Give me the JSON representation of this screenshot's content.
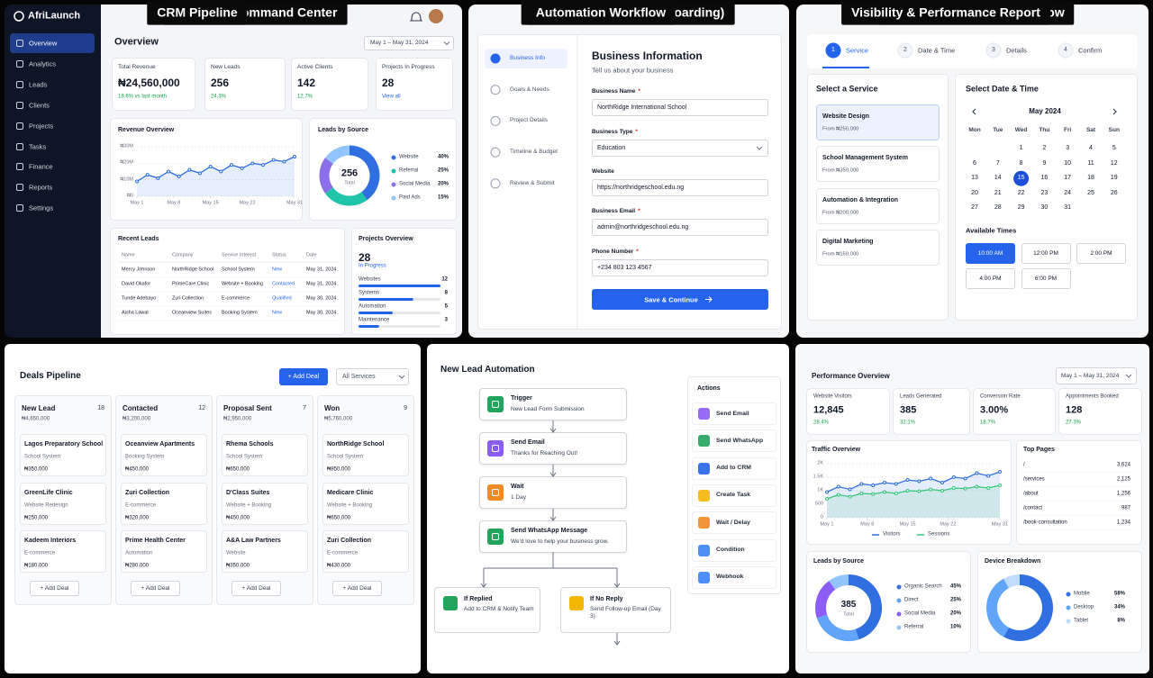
{
  "command_center": {
    "label": "Business Command Center",
    "brand": "AfriLaunch",
    "nav": [
      "Overview",
      "Analytics",
      "Leads",
      "Clients",
      "Projects",
      "Tasks",
      "Finance",
      "Reports",
      "Settings"
    ],
    "active_nav": 0,
    "title": "Overview",
    "date_range": "May 1 – May 31, 2024",
    "kpis": [
      {
        "label": "Total Revenue",
        "value": "₦24,560,000",
        "change": "18.6% vs last month"
      },
      {
        "label": "New Leads",
        "value": "256",
        "change": "24.3%"
      },
      {
        "label": "Active Clients",
        "value": "142",
        "change": "12.7%"
      },
      {
        "label": "Projects In Progress",
        "value": "28",
        "link": "View all"
      }
    ],
    "revenue": {
      "type": "line",
      "title": "Revenue Overview",
      "grid": true,
      "x": [
        1,
        3,
        5,
        7,
        9,
        11,
        13,
        15,
        17,
        19,
        21,
        23,
        25,
        27,
        29,
        31
      ],
      "xlim": [
        1,
        31
      ],
      "xticks": [
        {
          "value": 1,
          "label": "May 1"
        },
        {
          "value": 8,
          "label": "May 8"
        },
        {
          "value": 15,
          "label": "May 15"
        },
        {
          "value": 22,
          "label": "May 22"
        },
        {
          "value": 31,
          "label": "May 31"
        }
      ],
      "ylim": [
        0,
        30000000
      ],
      "yticks": [
        {
          "value": 0,
          "label": "₦0"
        },
        {
          "value": 10000000,
          "label": "₦10M"
        },
        {
          "value": 20000000,
          "label": "₦20M"
        },
        {
          "value": 30000000,
          "label": "₦30M"
        }
      ],
      "series": [
        {
          "color": "#2f6fe0",
          "values": [
            9000000,
            13000000,
            11000000,
            15000000,
            12000000,
            16000000,
            14000000,
            18000000,
            15000000,
            19000000,
            17000000,
            20000000,
            19000000,
            22000000,
            21000000,
            24000000
          ]
        }
      ]
    },
    "leads_source": {
      "type": "pie",
      "title": "Leads by Source",
      "total": "256",
      "total_label": "Total",
      "categories": [
        "Website",
        "Referral",
        "Social Media",
        "Paid Ads"
      ],
      "values": [
        40,
        25,
        20,
        15
      ],
      "value_labels": [
        "40%",
        "25%",
        "20%",
        "15%"
      ],
      "colors": [
        "#2f6fe0",
        "#20c4a8",
        "#8a6fe8",
        "#93c5fd"
      ]
    },
    "recent_leads": {
      "title": "Recent Leads",
      "columns": [
        "Name",
        "Company",
        "Service Interest",
        "Status",
        "Date"
      ],
      "rows": [
        [
          "Mercy Johnson",
          "NorthRidge School",
          "School System",
          "New",
          "May 31, 2024"
        ],
        [
          "David Okafor",
          "PrimeCare Clinic",
          "Website + Booking",
          "Contacted",
          "May 31, 2024"
        ],
        [
          "Tunde Adebayo",
          "Zuri Collection",
          "E-commerce",
          "Qualified",
          "May 30, 2024"
        ],
        [
          "Aisha Lawal",
          "Oceanview Suites",
          "Booking System",
          "New",
          "May 30, 2024"
        ]
      ]
    },
    "projects": {
      "type": "bar",
      "title": "Projects Overview",
      "total": "28",
      "subtitle": "In Progress",
      "categories": [
        "Websites",
        "Systems",
        "Automation",
        "Maintenance"
      ],
      "values": [
        12,
        8,
        5,
        3
      ],
      "color": "#2563eb"
    }
  },
  "intake_form": {
    "label": "Intake Form (Client Onboarding)",
    "steps": [
      "Business Info",
      "Goals & Needs",
      "Project Details",
      "Timeline & Budget",
      "Review & Submit"
    ],
    "active_step": 0,
    "title": "Business Information",
    "subtitle": "Tell us about your business",
    "required_mark": "*",
    "fields": [
      {
        "label": "Business Name",
        "value": "NorthRidge International School",
        "required": true
      },
      {
        "label": "Business Type",
        "value": "Education",
        "required": true,
        "dropdown": true
      },
      {
        "label": "Website",
        "value": "https://northridgeschool.edu.ng",
        "required": false
      },
      {
        "label": "Business Email",
        "value": "admin@northridgeschool.edu.ng",
        "required": true
      },
      {
        "label": "Phone Number",
        "value": "+234 803 123 4567",
        "required": true
      }
    ],
    "button": "Save & Continue"
  },
  "booking": {
    "label": "Booking & Appointment Flow",
    "steps": [
      {
        "number": 1,
        "label": "Service"
      },
      {
        "number": 2,
        "label": "Date & Time"
      },
      {
        "number": 3,
        "label": "Details"
      },
      {
        "number": 4,
        "label": "Confirm"
      }
    ],
    "active_step": 0,
    "service_title": "Select a Service",
    "services": [
      {
        "name": "Website Design",
        "price": "From ₦250,000"
      },
      {
        "name": "School Management System",
        "price": "From ₦350,000"
      },
      {
        "name": "Automation & Integration",
        "price": "From ₦200,000"
      },
      {
        "name": "Digital Marketing",
        "price": "From ₦150,000"
      }
    ],
    "selected_service": 0,
    "date_title": "Select Date & Time",
    "month": "May 2024",
    "weekdays": [
      "Mon",
      "Tue",
      "Wed",
      "Thu",
      "Fri",
      "Sat",
      "Sun"
    ],
    "days": [
      null,
      null,
      1,
      2,
      3,
      4,
      5,
      6,
      7,
      8,
      9,
      10,
      11,
      12,
      13,
      14,
      15,
      16,
      17,
      18,
      19,
      20,
      21,
      22,
      23,
      24,
      25,
      26,
      27,
      28,
      29,
      30,
      31
    ],
    "selected_day": 15,
    "times_title": "Available Times",
    "times": [
      "10:00 AM",
      "12:00 PM",
      "2:00 PM",
      "4:00 PM",
      "6:00 PM"
    ],
    "selected_time": 0
  },
  "crm": {
    "label": "CRM Pipeline",
    "title": "Deals Pipeline",
    "add_button": "+ Add Deal",
    "filter": "All Services",
    "stages": [
      {
        "name": "New Lead",
        "count": 18,
        "total": "₦4,650,000",
        "deals": [
          {
            "name": "Lagos Preparatory School",
            "service": "School System",
            "value": "₦350,000"
          },
          {
            "name": "GreenLife Clinic",
            "service": "Website Redesign",
            "value": "₦250,000"
          },
          {
            "name": "Kadeem Interiors",
            "service": "E-commerce",
            "value": "₦180,000"
          }
        ]
      },
      {
        "name": "Contacted",
        "count": 12,
        "total": "₦3,200,000",
        "deals": [
          {
            "name": "Oceanview Apartments",
            "service": "Booking System",
            "value": "₦450,000"
          },
          {
            "name": "Zuri Collection",
            "service": "E-commerce",
            "value": "₦320,000"
          },
          {
            "name": "Prime Health Center",
            "service": "Automation",
            "value": "₦280,000"
          }
        ]
      },
      {
        "name": "Proposal Sent",
        "count": 7,
        "total": "₦2,950,000",
        "deals": [
          {
            "name": "Rhema Schools",
            "service": "School System",
            "value": "₦650,000"
          },
          {
            "name": "D'Class Suites",
            "service": "Website + Booking",
            "value": "₦450,000"
          },
          {
            "name": "A&A Law Partners",
            "service": "Website",
            "value": "₦350,000"
          }
        ]
      },
      {
        "name": "Won",
        "count": 9,
        "total": "₦5,760,000",
        "deals": [
          {
            "name": "NorthRidge School",
            "service": "School System",
            "value": "₦850,000"
          },
          {
            "name": "Medicare Clinic",
            "service": "Website + Booking",
            "value": "₦650,000"
          },
          {
            "name": "Zuri Collection",
            "service": "E-commerce",
            "value": "₦430,000"
          }
        ]
      }
    ]
  },
  "automation": {
    "label": "Automation Workflow",
    "title": "New Lead Automation",
    "steps": [
      {
        "title": "Trigger",
        "text": "New Lead Form Submission",
        "color": "#22a45d"
      },
      {
        "title": "Send Email",
        "text": "Thanks for Reaching Out!",
        "color": "#8b5cf6"
      },
      {
        "title": "Wait",
        "text": "1 Day",
        "color": "#f08a24"
      },
      {
        "title": "Send WhatsApp Message",
        "text": "We'd love to help your business grow.",
        "color": "#22a45d"
      }
    ],
    "branches": [
      {
        "title": "If Replied",
        "text": "Add to CRM & Notify Team",
        "color": "#22a45d"
      },
      {
        "title": "If No Reply",
        "text": "Send Follow-up Email (Day 3)",
        "color": "#f2b705"
      }
    ],
    "actions_title": "Actions",
    "actions": [
      {
        "name": "Send Email",
        "color": "#8b5cf6"
      },
      {
        "name": "Send WhatsApp",
        "color": "#22a45d"
      },
      {
        "name": "Add to CRM",
        "color": "#2563eb"
      },
      {
        "name": "Create Task",
        "color": "#f2b705"
      },
      {
        "name": "Wait / Delay",
        "color": "#f08a24"
      },
      {
        "name": "Condition",
        "color": "#3b82f6"
      },
      {
        "name": "Webhook",
        "color": "#3b82f6"
      }
    ]
  },
  "report": {
    "label": "Visibility & Performance Report",
    "title": "Performance Overview",
    "date_range": "May 1 – May 31, 2024",
    "kpis": [
      {
        "label": "Website Visitors",
        "value": "12,845",
        "change": "28.4%"
      },
      {
        "label": "Leads Generated",
        "value": "385",
        "change": "32.1%"
      },
      {
        "label": "Conversion Rate",
        "value": "3.00%",
        "change": "18.7%"
      },
      {
        "label": "Appointments Booked",
        "value": "128",
        "change": "27.3%"
      }
    ],
    "traffic": {
      "type": "line",
      "title": "Traffic Overview",
      "grid": true,
      "legend": "bottom",
      "x": [
        1,
        3,
        5,
        7,
        9,
        11,
        13,
        15,
        17,
        19,
        21,
        23,
        25,
        27,
        29,
        31
      ],
      "xlim": [
        1,
        31
      ],
      "xticks": [
        {
          "value": 1,
          "label": "May 1"
        },
        {
          "value": 8,
          "label": "May 8"
        },
        {
          "value": 15,
          "label": "May 15"
        },
        {
          "value": 22,
          "label": "May 22"
        },
        {
          "value": 31,
          "label": "May 31"
        }
      ],
      "ylim": [
        0,
        2000
      ],
      "yticks": [
        0,
        500,
        {
          "value": 1000,
          "label": "1K"
        },
        {
          "value": 1500,
          "label": "1.5K"
        },
        {
          "value": 2000,
          "label": "2K"
        }
      ],
      "series": [
        {
          "name": "Visitors",
          "color": "#2f6fe0",
          "values": [
            950,
            1150,
            1050,
            1250,
            1200,
            1300,
            1250,
            1400,
            1350,
            1450,
            1300,
            1500,
            1450,
            1650,
            1550,
            1700
          ]
        },
        {
          "name": "Sessions",
          "color": "#34c77b",
          "values": [
            700,
            850,
            780,
            900,
            880,
            950,
            900,
            1000,
            980,
            1050,
            1000,
            1100,
            1080,
            1150,
            1100,
            1200
          ]
        }
      ]
    },
    "top_pages": {
      "title": "Top Pages",
      "rows": [
        [
          "/",
          "3,624"
        ],
        [
          "/services",
          "2,125"
        ],
        [
          "/about",
          "1,256"
        ],
        [
          "/contact",
          "987"
        ],
        [
          "/book-consultation",
          "1,234"
        ]
      ]
    },
    "leads_source": {
      "type": "pie",
      "title": "Leads by Source",
      "total": "385",
      "total_label": "Total",
      "categories": [
        "Organic Search",
        "Direct",
        "Social Media",
        "Referral"
      ],
      "values": [
        45,
        25,
        20,
        10
      ],
      "value_labels": [
        "45%",
        "25%",
        "20%",
        "10%"
      ],
      "colors": [
        "#2f6fe0",
        "#60a5fa",
        "#8b5cf6",
        "#93c5fd"
      ]
    },
    "devices": {
      "type": "pie",
      "title": "Device Breakdown",
      "categories": [
        "Mobile",
        "Desktop",
        "Tablet"
      ],
      "values": [
        58,
        34,
        8
      ],
      "value_labels": [
        "58%",
        "34%",
        "8%"
      ],
      "colors": [
        "#2f6fe0",
        "#60a5fa",
        "#bfdbfe"
      ]
    }
  }
}
